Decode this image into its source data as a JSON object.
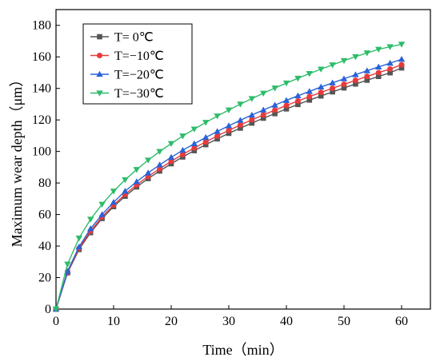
{
  "chart_data": {
    "type": "line",
    "xlabel": "Time（min）",
    "ylabel": "Maximum wear depth（μm）",
    "xlim": [
      0,
      65
    ],
    "ylim": [
      0,
      190
    ],
    "xticks": [
      0,
      10,
      20,
      30,
      40,
      50,
      60
    ],
    "yticks": [
      0,
      20,
      40,
      60,
      80,
      100,
      120,
      140,
      160,
      180
    ],
    "grid": false,
    "legend_position": "top-left",
    "x": [
      0,
      2,
      4,
      6,
      8,
      10,
      12,
      14,
      16,
      18,
      20,
      22,
      24,
      26,
      28,
      30,
      32,
      34,
      36,
      38,
      40,
      42,
      44,
      46,
      48,
      50,
      52,
      54,
      56,
      58,
      60
    ],
    "series": [
      {
        "name": "T= 0℃",
        "color": "#555555",
        "marker": "square",
        "values": [
          0,
          23,
          37.8,
          48.5,
          57.5,
          65,
          71.6,
          77.5,
          82.8,
          87.6,
          92.2,
          96.5,
          100.5,
          104.3,
          108,
          111.5,
          114.8,
          118,
          121.1,
          124,
          127,
          129.8,
          132.6,
          135.2,
          137.8,
          140.3,
          142.8,
          145.2,
          147.6,
          149.9,
          153
        ]
      },
      {
        "name": "T=−10℃",
        "color": "#e83a3a",
        "marker": "circle",
        "values": [
          0,
          23.5,
          38.5,
          49.5,
          58.5,
          66,
          72.8,
          78.8,
          84.2,
          89,
          93.8,
          98.1,
          102.2,
          106.1,
          109.8,
          113.4,
          116.8,
          120.1,
          123.2,
          126.2,
          129.2,
          132,
          134.8,
          137.5,
          140.1,
          142.6,
          145.1,
          147.6,
          150,
          152.3,
          155
        ]
      },
      {
        "name": "T=−20℃",
        "color": "#2a62d8",
        "marker": "triangle-up",
        "values": [
          0,
          24,
          39.5,
          51,
          60,
          67.8,
          74.8,
          80.8,
          86.4,
          91.5,
          96.3,
          100.8,
          104.9,
          108.9,
          112.7,
          116.3,
          119.8,
          123.1,
          126.3,
          129.4,
          132.4,
          135.3,
          138.1,
          140.9,
          143.5,
          146.1,
          148.7,
          151.2,
          153.6,
          156,
          158.5
        ]
      },
      {
        "name": "T=−30℃",
        "color": "#2ebc6a",
        "marker": "triangle-down",
        "values": [
          0,
          28.5,
          45,
          57,
          66.5,
          74.8,
          82,
          88.5,
          94.5,
          100,
          105,
          109.8,
          114.2,
          118.4,
          122.5,
          126.3,
          130,
          133.5,
          136.9,
          140.2,
          143.4,
          146.4,
          149.4,
          152.2,
          154.9,
          157.6,
          160.1,
          162.5,
          164.8,
          166.4,
          168
        ]
      }
    ]
  }
}
